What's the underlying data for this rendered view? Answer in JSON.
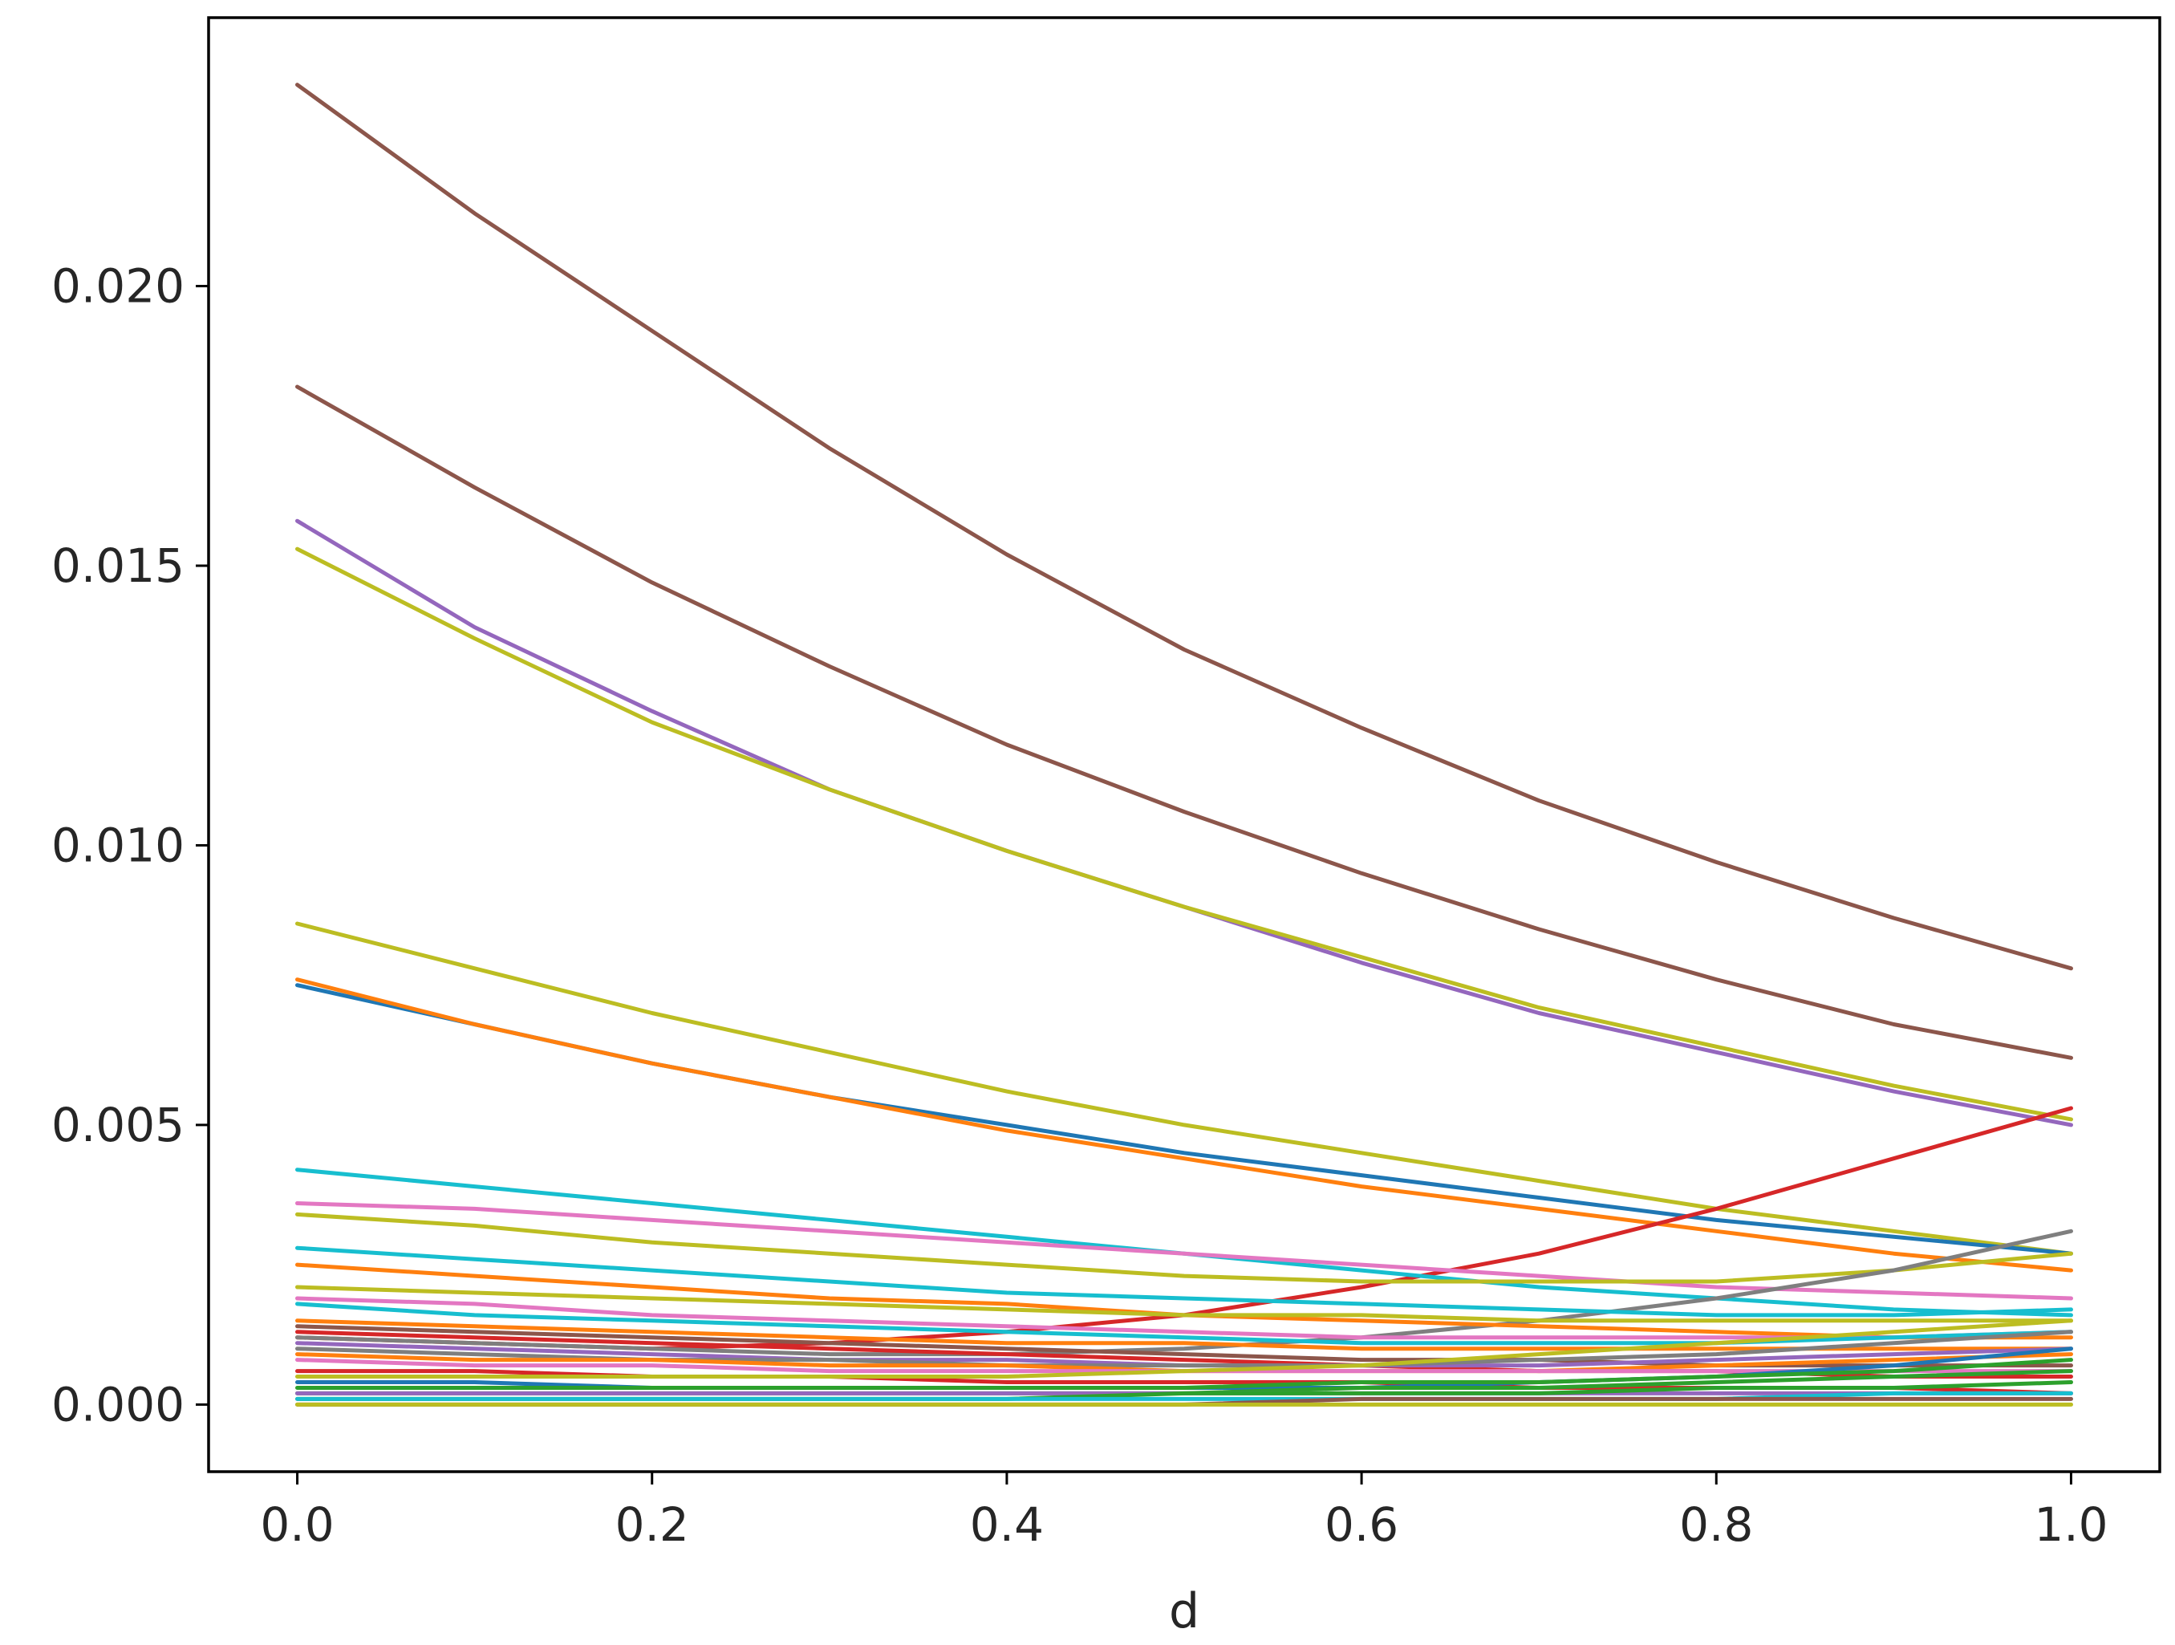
{
  "chart_data": {
    "type": "line",
    "title": "",
    "xlabel": "d",
    "ylabel": "",
    "xlim": [
      -0.05,
      1.05
    ],
    "ylim": [
      -0.0012,
      0.0248
    ],
    "grid": false,
    "legend": "none",
    "x_ticks": [
      0.0,
      0.2,
      0.4,
      0.6,
      0.8,
      1.0
    ],
    "x_tick_labels": [
      "0.0",
      "0.2",
      "0.4",
      "0.6",
      "0.8",
      "1.0"
    ],
    "y_ticks": [
      0.0,
      0.005,
      0.01,
      0.015,
      0.02
    ],
    "y_tick_labels": [
      "0.000",
      "0.005",
      "0.010",
      "0.015",
      "0.020"
    ],
    "x": [
      0.0,
      0.1,
      0.2,
      0.3,
      0.4,
      0.5,
      0.6,
      0.7,
      0.8,
      0.9,
      1.0
    ],
    "series": [
      {
        "color": "#8c564b",
        "values": [
          0.0236,
          0.0213,
          0.0192,
          0.0171,
          0.0152,
          0.0135,
          0.0121,
          0.0108,
          0.0097,
          0.0087,
          0.0078
        ]
      },
      {
        "color": "#8c564b",
        "values": [
          0.0182,
          0.0164,
          0.0147,
          0.0132,
          0.0118,
          0.0106,
          0.0095,
          0.0085,
          0.0076,
          0.0068,
          0.0062
        ]
      },
      {
        "color": "#9467bd",
        "values": [
          0.0158,
          0.0139,
          0.0124,
          0.011,
          0.0099,
          0.0089,
          0.0079,
          0.007,
          0.0063,
          0.0056,
          0.005
        ]
      },
      {
        "color": "#bcbd22",
        "values": [
          0.0153,
          0.0137,
          0.0122,
          0.011,
          0.0099,
          0.0089,
          0.008,
          0.0071,
          0.0064,
          0.0057,
          0.0051
        ]
      },
      {
        "color": "#bcbd22",
        "values": [
          0.0086,
          0.0078,
          0.007,
          0.0063,
          0.0056,
          0.005,
          0.0045,
          0.004,
          0.0035,
          0.0031,
          0.0027
        ]
      },
      {
        "color": "#1f77b4",
        "values": [
          0.0075,
          0.0068,
          0.0061,
          0.0055,
          0.005,
          0.0045,
          0.0041,
          0.0037,
          0.0033,
          0.003,
          0.0027
        ]
      },
      {
        "color": "#ff7f0e",
        "values": [
          0.0076,
          0.0068,
          0.0061,
          0.0055,
          0.0049,
          0.0044,
          0.0039,
          0.0035,
          0.0031,
          0.0027,
          0.0024
        ]
      },
      {
        "color": "#d62728",
        "values": [
          0.0012,
          0.0011,
          0.001,
          0.0011,
          0.0013,
          0.0016,
          0.0021,
          0.0027,
          0.0035,
          0.0044,
          0.0053
        ]
      },
      {
        "color": "#17becf",
        "values": [
          0.0042,
          0.0039,
          0.0036,
          0.0033,
          0.003,
          0.0027,
          0.0024,
          0.0021,
          0.0019,
          0.0017,
          0.0016
        ]
      },
      {
        "color": "#e377c2",
        "values": [
          0.0036,
          0.0035,
          0.0033,
          0.0031,
          0.0029,
          0.0027,
          0.0025,
          0.0023,
          0.0021,
          0.002,
          0.0019
        ]
      },
      {
        "color": "#bcbd22",
        "values": [
          0.0034,
          0.0032,
          0.0029,
          0.0027,
          0.0025,
          0.0023,
          0.0022,
          0.0022,
          0.0022,
          0.0024,
          0.0027
        ]
      },
      {
        "color": "#7f7f7f",
        "values": [
          0.0012,
          0.0011,
          0.001,
          0.0009,
          0.0009,
          0.001,
          0.0012,
          0.0015,
          0.0019,
          0.0024,
          0.0031
        ]
      },
      {
        "color": "#17becf",
        "values": [
          0.0028,
          0.0026,
          0.0024,
          0.0022,
          0.002,
          0.0019,
          0.0018,
          0.0017,
          0.0016,
          0.0016,
          0.0017
        ]
      },
      {
        "color": "#ff7f0e",
        "values": [
          0.0025,
          0.0023,
          0.0021,
          0.0019,
          0.0018,
          0.0016,
          0.0015,
          0.0014,
          0.0013,
          0.0012,
          0.0012
        ]
      },
      {
        "color": "#bcbd22",
        "values": [
          0.0021,
          0.002,
          0.0019,
          0.0018,
          0.0017,
          0.0016,
          0.0016,
          0.0015,
          0.0015,
          0.0015,
          0.0015
        ]
      },
      {
        "color": "#e377c2",
        "values": [
          0.0019,
          0.0018,
          0.0016,
          0.0015,
          0.0014,
          0.0013,
          0.0012,
          0.0012,
          0.0012,
          0.0012,
          0.0013
        ]
      },
      {
        "color": "#17becf",
        "values": [
          0.0018,
          0.0016,
          0.0015,
          0.0014,
          0.0013,
          0.0012,
          0.0011,
          0.0011,
          0.0011,
          0.0012,
          0.0013
        ]
      },
      {
        "color": "#ff7f0e",
        "values": [
          0.0015,
          0.0014,
          0.0013,
          0.0012,
          0.0011,
          0.0011,
          0.001,
          0.001,
          0.001,
          0.001,
          0.001
        ]
      },
      {
        "color": "#8c564b",
        "values": [
          0.0014,
          0.0013,
          0.0012,
          0.0011,
          0.001,
          0.0009,
          0.0008,
          0.0008,
          0.0007,
          0.0007,
          0.0007
        ]
      },
      {
        "color": "#d62728",
        "values": [
          0.0013,
          0.0012,
          0.0011,
          0.001,
          0.0009,
          0.0008,
          0.0007,
          0.0006,
          0.0006,
          0.0005,
          0.0005
        ]
      },
      {
        "color": "#9467bd",
        "values": [
          0.0011,
          0.001,
          0.0009,
          0.0008,
          0.0008,
          0.0007,
          0.0007,
          0.0007,
          0.0008,
          0.0009,
          0.001
        ]
      },
      {
        "color": "#7f7f7f",
        "values": [
          0.001,
          0.0009,
          0.0008,
          0.0008,
          0.0007,
          0.0007,
          0.0007,
          0.0008,
          0.0009,
          0.0011,
          0.0013
        ]
      },
      {
        "color": "#ff7f0e",
        "values": [
          0.0009,
          0.0008,
          0.0008,
          0.0007,
          0.0007,
          0.0006,
          0.0006,
          0.0006,
          0.0007,
          0.0008,
          0.0009
        ]
      },
      {
        "color": "#e377c2",
        "values": [
          0.0008,
          0.0007,
          0.0007,
          0.0006,
          0.0006,
          0.0006,
          0.0006,
          0.0006,
          0.0006,
          0.0006,
          0.0006
        ]
      },
      {
        "color": "#d62728",
        "values": [
          0.0006,
          0.0006,
          0.0005,
          0.0005,
          0.0004,
          0.0004,
          0.0004,
          0.0003,
          0.0003,
          0.0003,
          0.0002
        ]
      },
      {
        "color": "#bcbd22",
        "values": [
          0.0005,
          0.0005,
          0.0005,
          0.0005,
          0.0005,
          0.0006,
          0.0007,
          0.0009,
          0.0011,
          0.0013,
          0.0015
        ]
      },
      {
        "color": "#1f77b4",
        "values": [
          0.0004,
          0.0004,
          0.0003,
          0.0003,
          0.0003,
          0.0003,
          0.0003,
          0.0004,
          0.0005,
          0.0007,
          0.001
        ]
      },
      {
        "color": "#2ca02c",
        "values": [
          0.0003,
          0.0003,
          0.0003,
          0.0003,
          0.0003,
          0.0003,
          0.0004,
          0.0004,
          0.0005,
          0.0006,
          0.0008
        ]
      },
      {
        "color": "#2ca02c",
        "values": [
          0.0002,
          0.0002,
          0.0002,
          0.0002,
          0.0002,
          0.0002,
          0.0003,
          0.0003,
          0.0004,
          0.0005,
          0.0006
        ]
      },
      {
        "color": "#9467bd",
        "values": [
          0.0002,
          0.0002,
          0.0002,
          0.0002,
          0.0002,
          0.0002,
          0.0002,
          0.0002,
          0.0002,
          0.0002,
          0.0002
        ]
      },
      {
        "color": "#2ca02c",
        "values": [
          0.0001,
          0.0001,
          0.0001,
          0.0001,
          0.0001,
          0.0002,
          0.0002,
          0.0002,
          0.0003,
          0.0003,
          0.0004
        ]
      },
      {
        "color": "#17becf",
        "values": [
          0.0001,
          0.0001,
          0.0001,
          0.0001,
          0.0001,
          0.0001,
          0.0001,
          0.0001,
          0.0001,
          0.0002,
          0.0002
        ]
      },
      {
        "color": "#8c564b",
        "values": [
          0.0,
          0.0,
          0.0,
          0.0,
          0.0,
          0.0,
          0.0001,
          0.0001,
          0.0001,
          0.0001,
          0.0001
        ]
      },
      {
        "color": "#bcbd22",
        "values": [
          0.0,
          0.0,
          0.0,
          0.0,
          0.0,
          0.0,
          0.0,
          0.0,
          0.0,
          0.0,
          0.0
        ]
      }
    ]
  }
}
